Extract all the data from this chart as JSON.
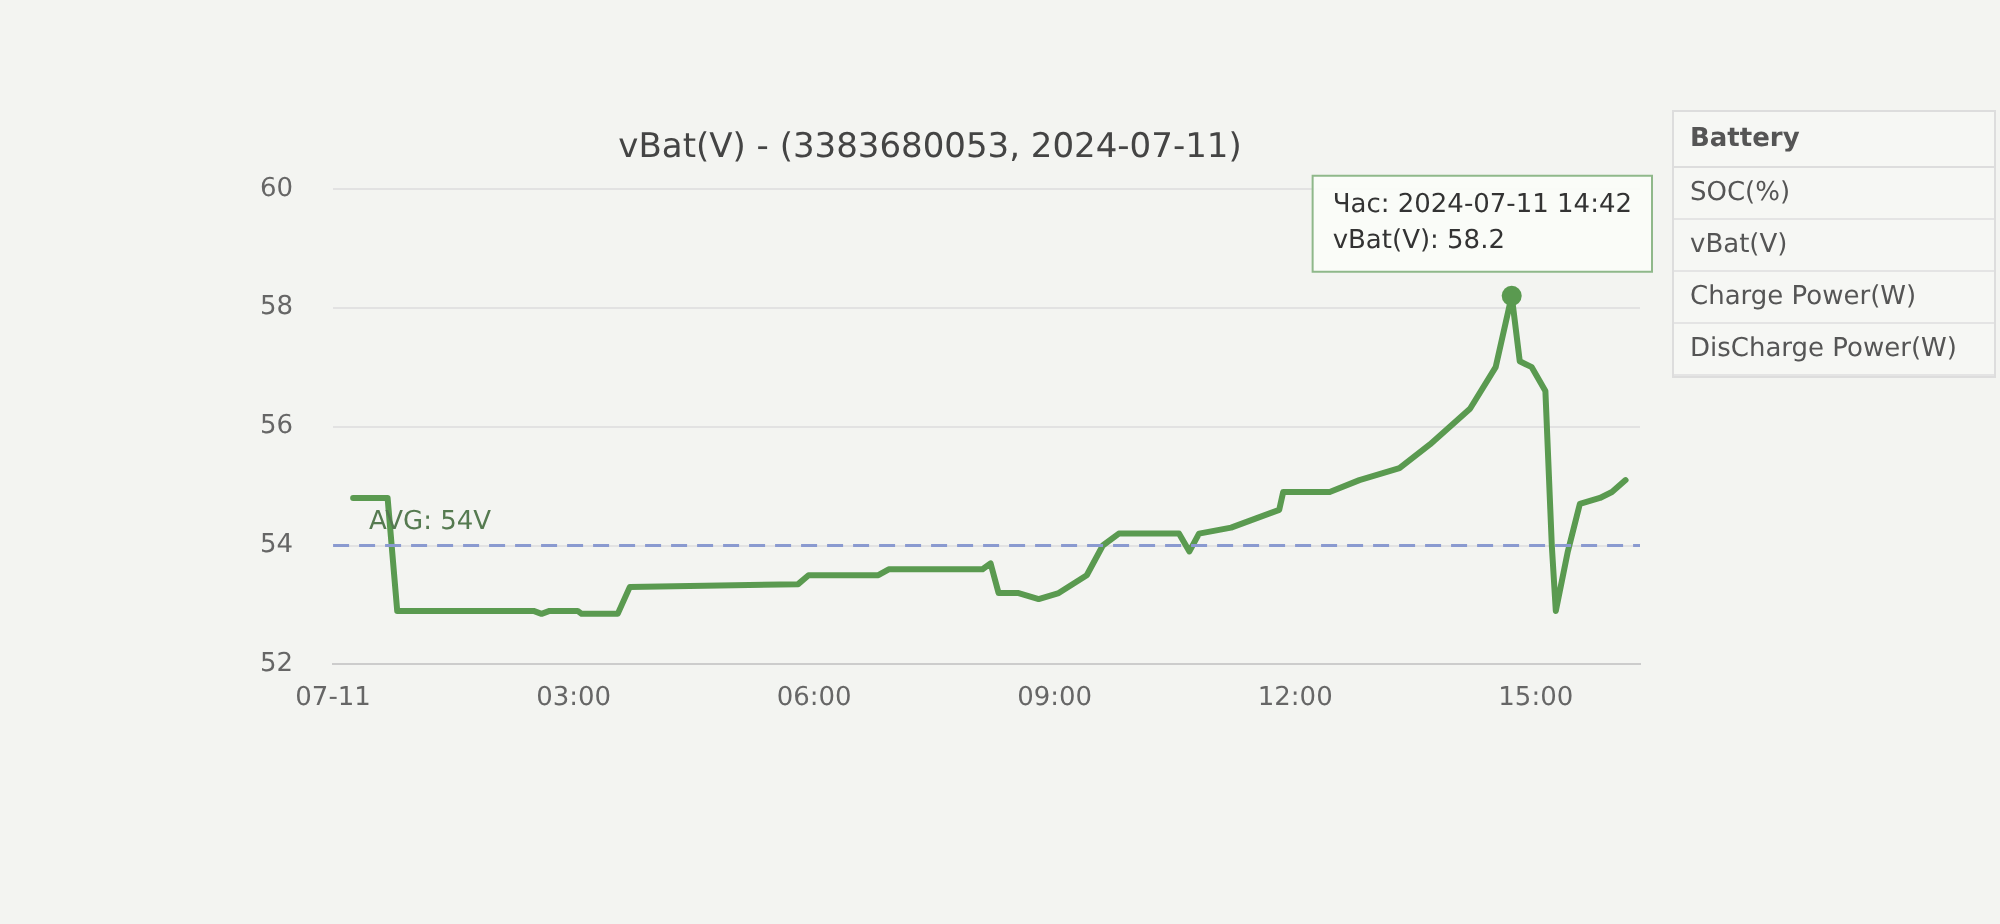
{
  "chart_data": [
    {
      "type": "line",
      "title": "vBat(V) - (3383680053, 2024-07-11)",
      "x": [
        0.25,
        0.68,
        0.8,
        2.5,
        2.6,
        2.7,
        3.05,
        3.1,
        3.55,
        3.7,
        5.8,
        5.93,
        6.8,
        6.93,
        8.1,
        8.2,
        8.3,
        8.55,
        8.8,
        9.05,
        9.4,
        9.6,
        9.8,
        10.55,
        10.68,
        10.8,
        11.2,
        11.8,
        11.85,
        12.43,
        12.8,
        13.3,
        13.68,
        14.18,
        14.5,
        14.7,
        14.8,
        14.95,
        15.12,
        15.2,
        15.25,
        15.4,
        15.55,
        15.8,
        15.95,
        16.12
      ],
      "series": [
        {
          "color": "#5a9a50",
          "values": [
            54.8,
            54.8,
            52.9,
            52.9,
            52.85,
            52.9,
            52.9,
            52.85,
            52.85,
            53.3,
            53.35,
            53.5,
            53.5,
            53.6,
            53.6,
            53.7,
            53.2,
            53.2,
            53.1,
            53.2,
            53.5,
            54.0,
            54.2,
            54.2,
            53.9,
            54.2,
            54.3,
            54.6,
            54.9,
            54.9,
            55.1,
            55.3,
            55.7,
            56.3,
            57.0,
            58.2,
            57.1,
            57.0,
            56.6,
            54.0,
            52.9,
            53.9,
            54.7,
            54.8,
            54.9,
            55.1
          ]
        }
      ],
      "xlim": [
        0,
        16.3
      ],
      "xticks": [
        {
          "value": 0,
          "label": "07-11"
        },
        {
          "value": 3,
          "label": "03:00"
        },
        {
          "value": 6,
          "label": "06:00"
        },
        {
          "value": 9,
          "label": "09:00"
        },
        {
          "value": 12,
          "label": "12:00"
        },
        {
          "value": 15,
          "label": "15:00"
        }
      ],
      "ylim": [
        52,
        60
      ],
      "yticks": [
        52,
        54,
        56,
        58,
        60
      ],
      "grid": "y",
      "legend": false,
      "marker": "none",
      "line_style": "solid",
      "ref_lines": [
        {
          "axis": "y",
          "value": 54,
          "label": "AVG: 54V",
          "color": "#8a9ad0",
          "line_style": "dashed"
        }
      ],
      "annotations": [
        {
          "text": "Час: 2024-07-11 14:42",
          "x": 14.7,
          "y": 58.2
        },
        {
          "text": "vBat(V): 58.2",
          "x": 14.7,
          "y": 58.2
        }
      ]
    },
    {
      "type": "other",
      "title": "Battery",
      "annotations": [
        "SOC(%)",
        "vBat(V)",
        "Charge Power(W)",
        "DisCharge Power(W)"
      ]
    }
  ]
}
